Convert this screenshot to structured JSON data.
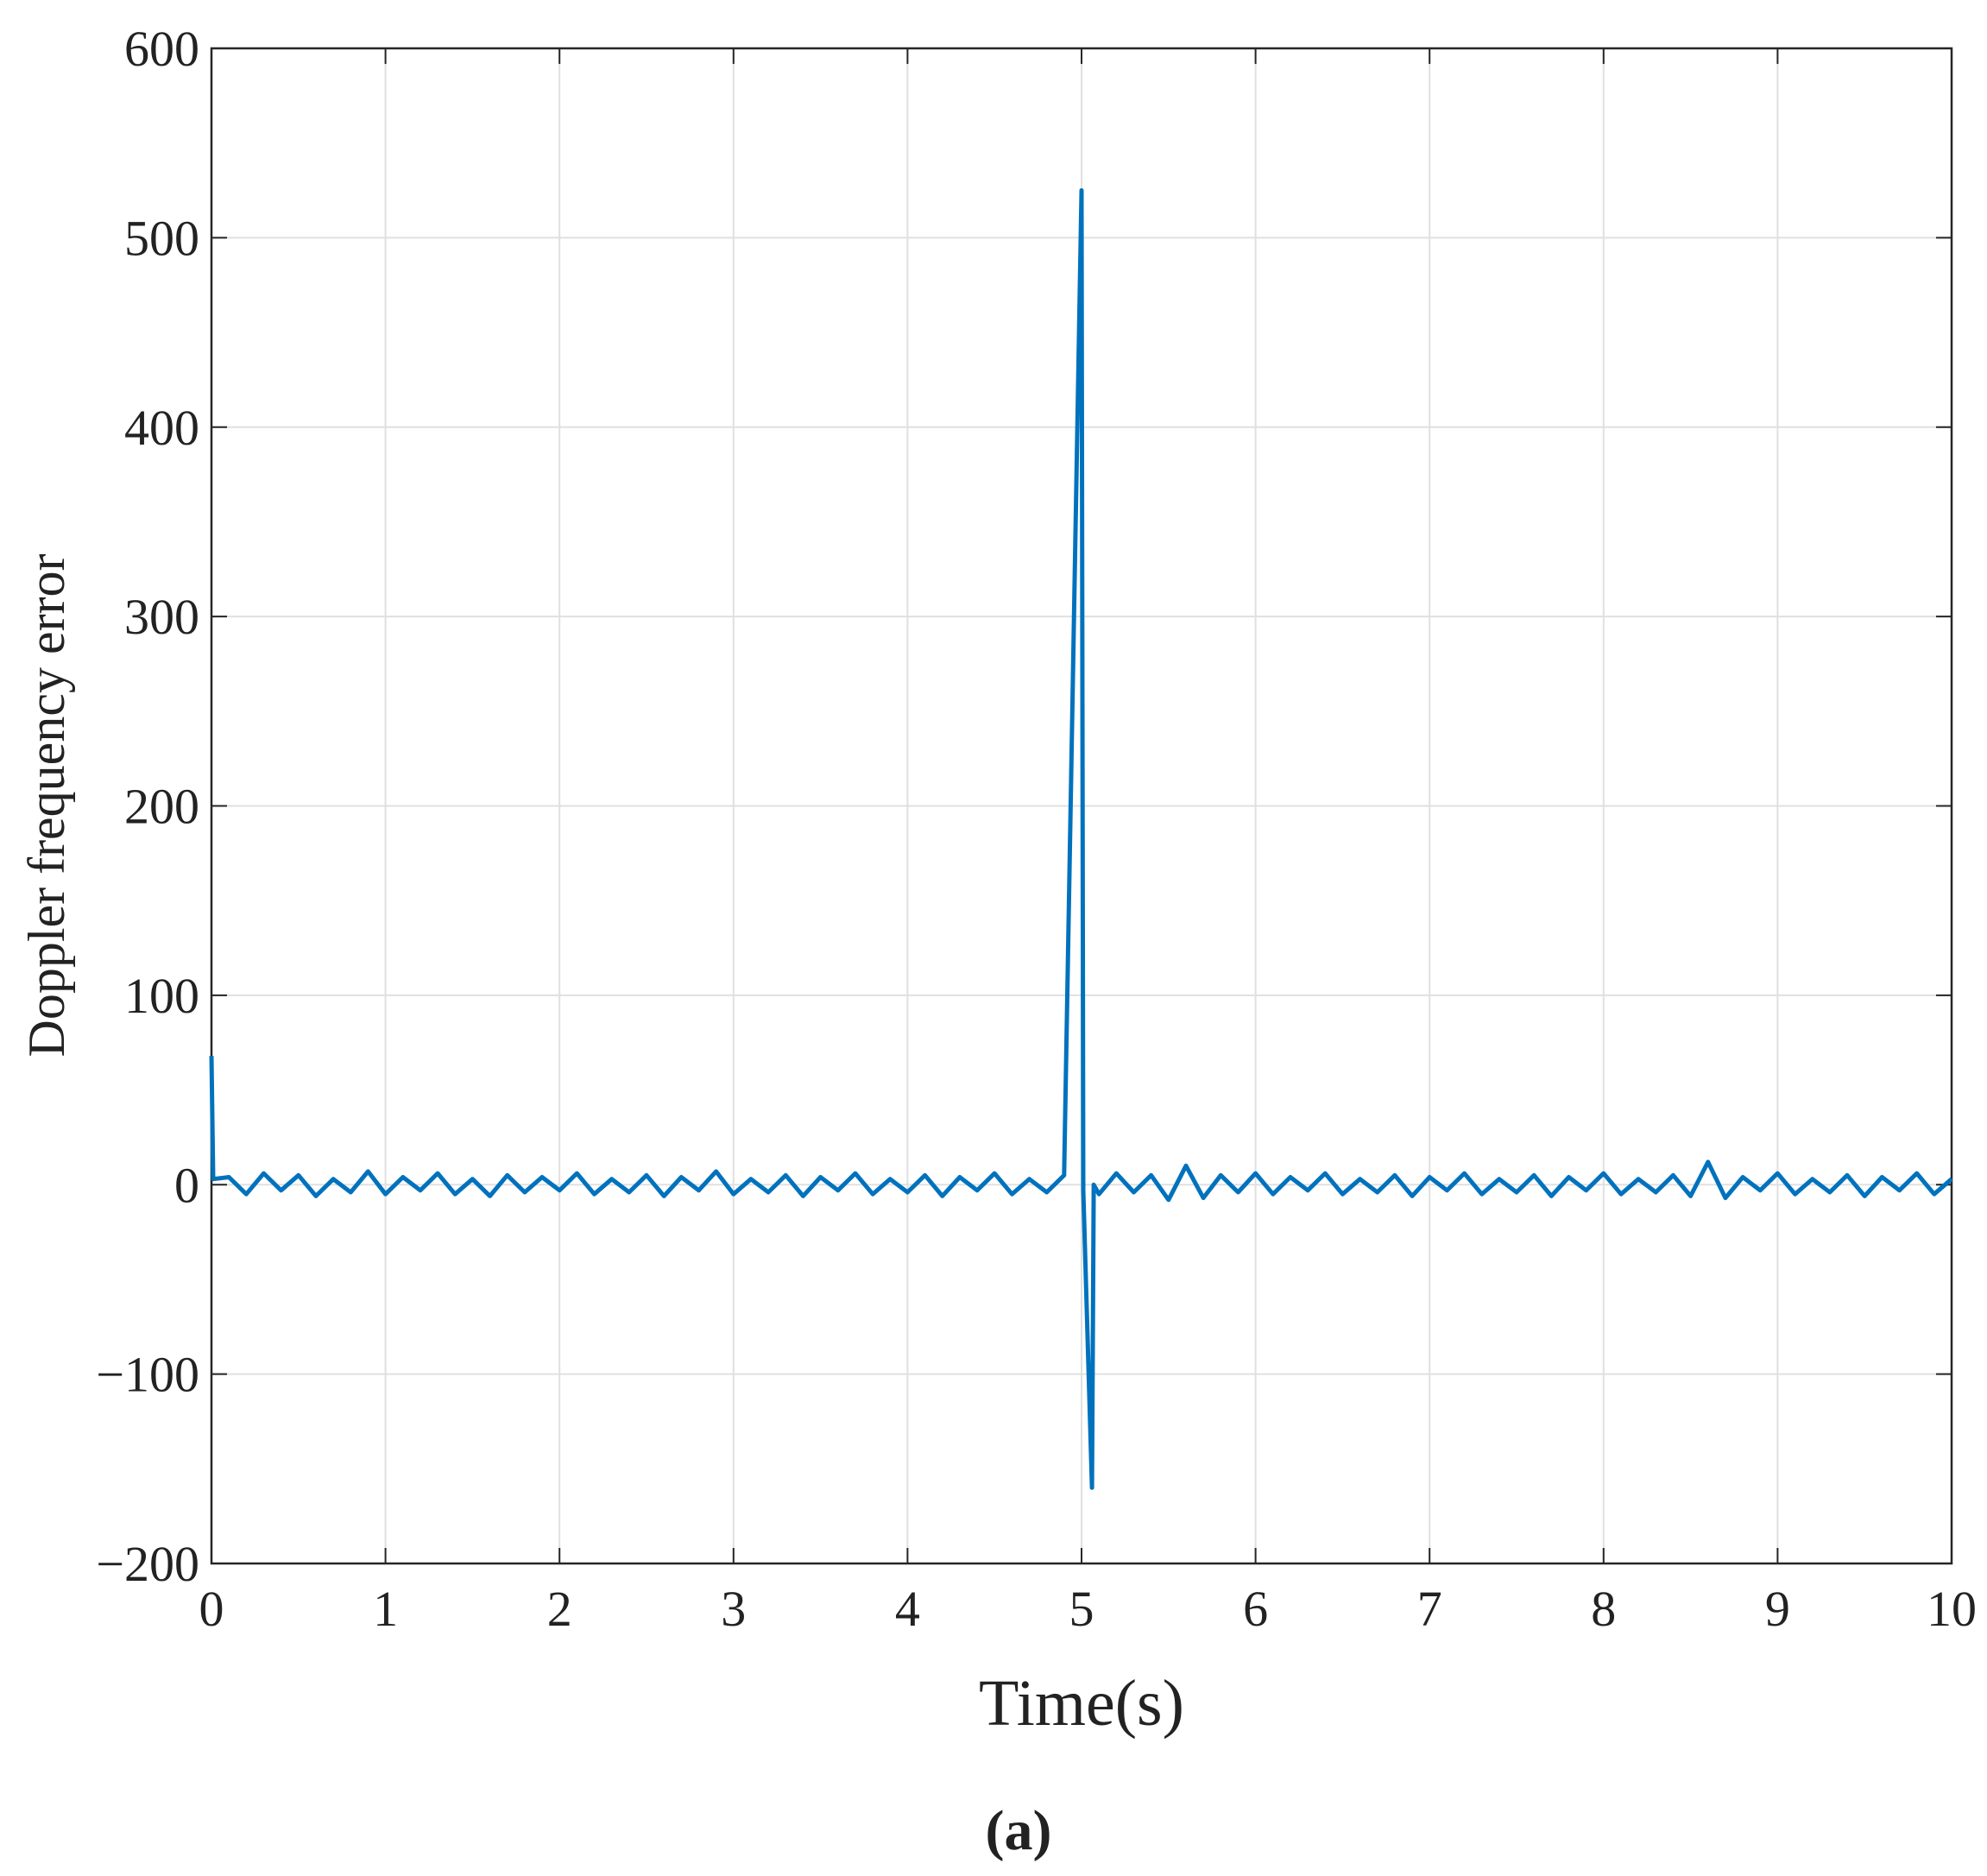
{
  "chart_data": {
    "type": "line",
    "xlabel": "Time(s)",
    "ylabel": "Doppler frequency error",
    "caption": "(a)",
    "color": "#0072bd",
    "grid": true,
    "xlim": [
      0,
      10
    ],
    "xticks": [
      0,
      1,
      2,
      3,
      4,
      5,
      6,
      7,
      8,
      9,
      10
    ],
    "ylim": [
      -200,
      600
    ],
    "yticks": [
      {
        "value": -200,
        "label": "−200"
      },
      {
        "value": -100,
        "label": "−100"
      },
      0,
      100,
      200,
      300,
      400,
      500,
      600
    ],
    "x": [
      0,
      0.01,
      0.1,
      0.2,
      0.3,
      0.4,
      0.5,
      0.6,
      0.7,
      0.8,
      0.9,
      1.0,
      1.1,
      1.2,
      1.3,
      1.4,
      1.5,
      1.6,
      1.7,
      1.8,
      1.9,
      2.0,
      2.1,
      2.2,
      2.3,
      2.4,
      2.5,
      2.6,
      2.7,
      2.8,
      2.9,
      3.0,
      3.1,
      3.2,
      3.3,
      3.4,
      3.5,
      3.6,
      3.7,
      3.8,
      3.9,
      4.0,
      4.1,
      4.2,
      4.3,
      4.4,
      4.5,
      4.6,
      4.7,
      4.8,
      4.9,
      5.0,
      5.01,
      5.06,
      5.07,
      5.1,
      5.2,
      5.3,
      5.4,
      5.5,
      5.6,
      5.7,
      5.8,
      5.9,
      6.0,
      6.1,
      6.2,
      6.3,
      6.4,
      6.5,
      6.6,
      6.7,
      6.8,
      6.9,
      7.0,
      7.1,
      7.2,
      7.3,
      7.4,
      7.5,
      7.6,
      7.7,
      7.8,
      7.9,
      8.0,
      8.1,
      8.2,
      8.3,
      8.4,
      8.5,
      8.6,
      8.7,
      8.8,
      8.9,
      9.0,
      9.1,
      9.2,
      9.3,
      9.4,
      9.5,
      9.6,
      9.7,
      9.8,
      9.9,
      10.0
    ],
    "values": [
      68,
      3,
      4,
      -5,
      6,
      -3,
      5,
      -6,
      3,
      -4,
      7,
      -5,
      4,
      -3,
      6,
      -5,
      3,
      -6,
      5,
      -4,
      4,
      -3,
      6,
      -5,
      3,
      -4,
      5,
      -6,
      4,
      -3,
      7,
      -5,
      3,
      -4,
      5,
      -6,
      4,
      -3,
      6,
      -5,
      3,
      -4,
      5,
      -6,
      4,
      -3,
      6,
      -5,
      3,
      -4,
      5,
      525,
      -3,
      -160,
      0,
      -5,
      6,
      -4,
      5,
      -8,
      10,
      -7,
      5,
      -4,
      6,
      -5,
      4,
      -3,
      6,
      -5,
      3,
      -4,
      5,
      -6,
      4,
      -3,
      6,
      -5,
      3,
      -4,
      5,
      -6,
      4,
      -3,
      6,
      -5,
      3,
      -4,
      5,
      -6,
      12,
      -7,
      4,
      -3,
      6,
      -5,
      3,
      -4,
      5,
      -6,
      4,
      -3,
      6,
      -5,
      3
    ]
  }
}
